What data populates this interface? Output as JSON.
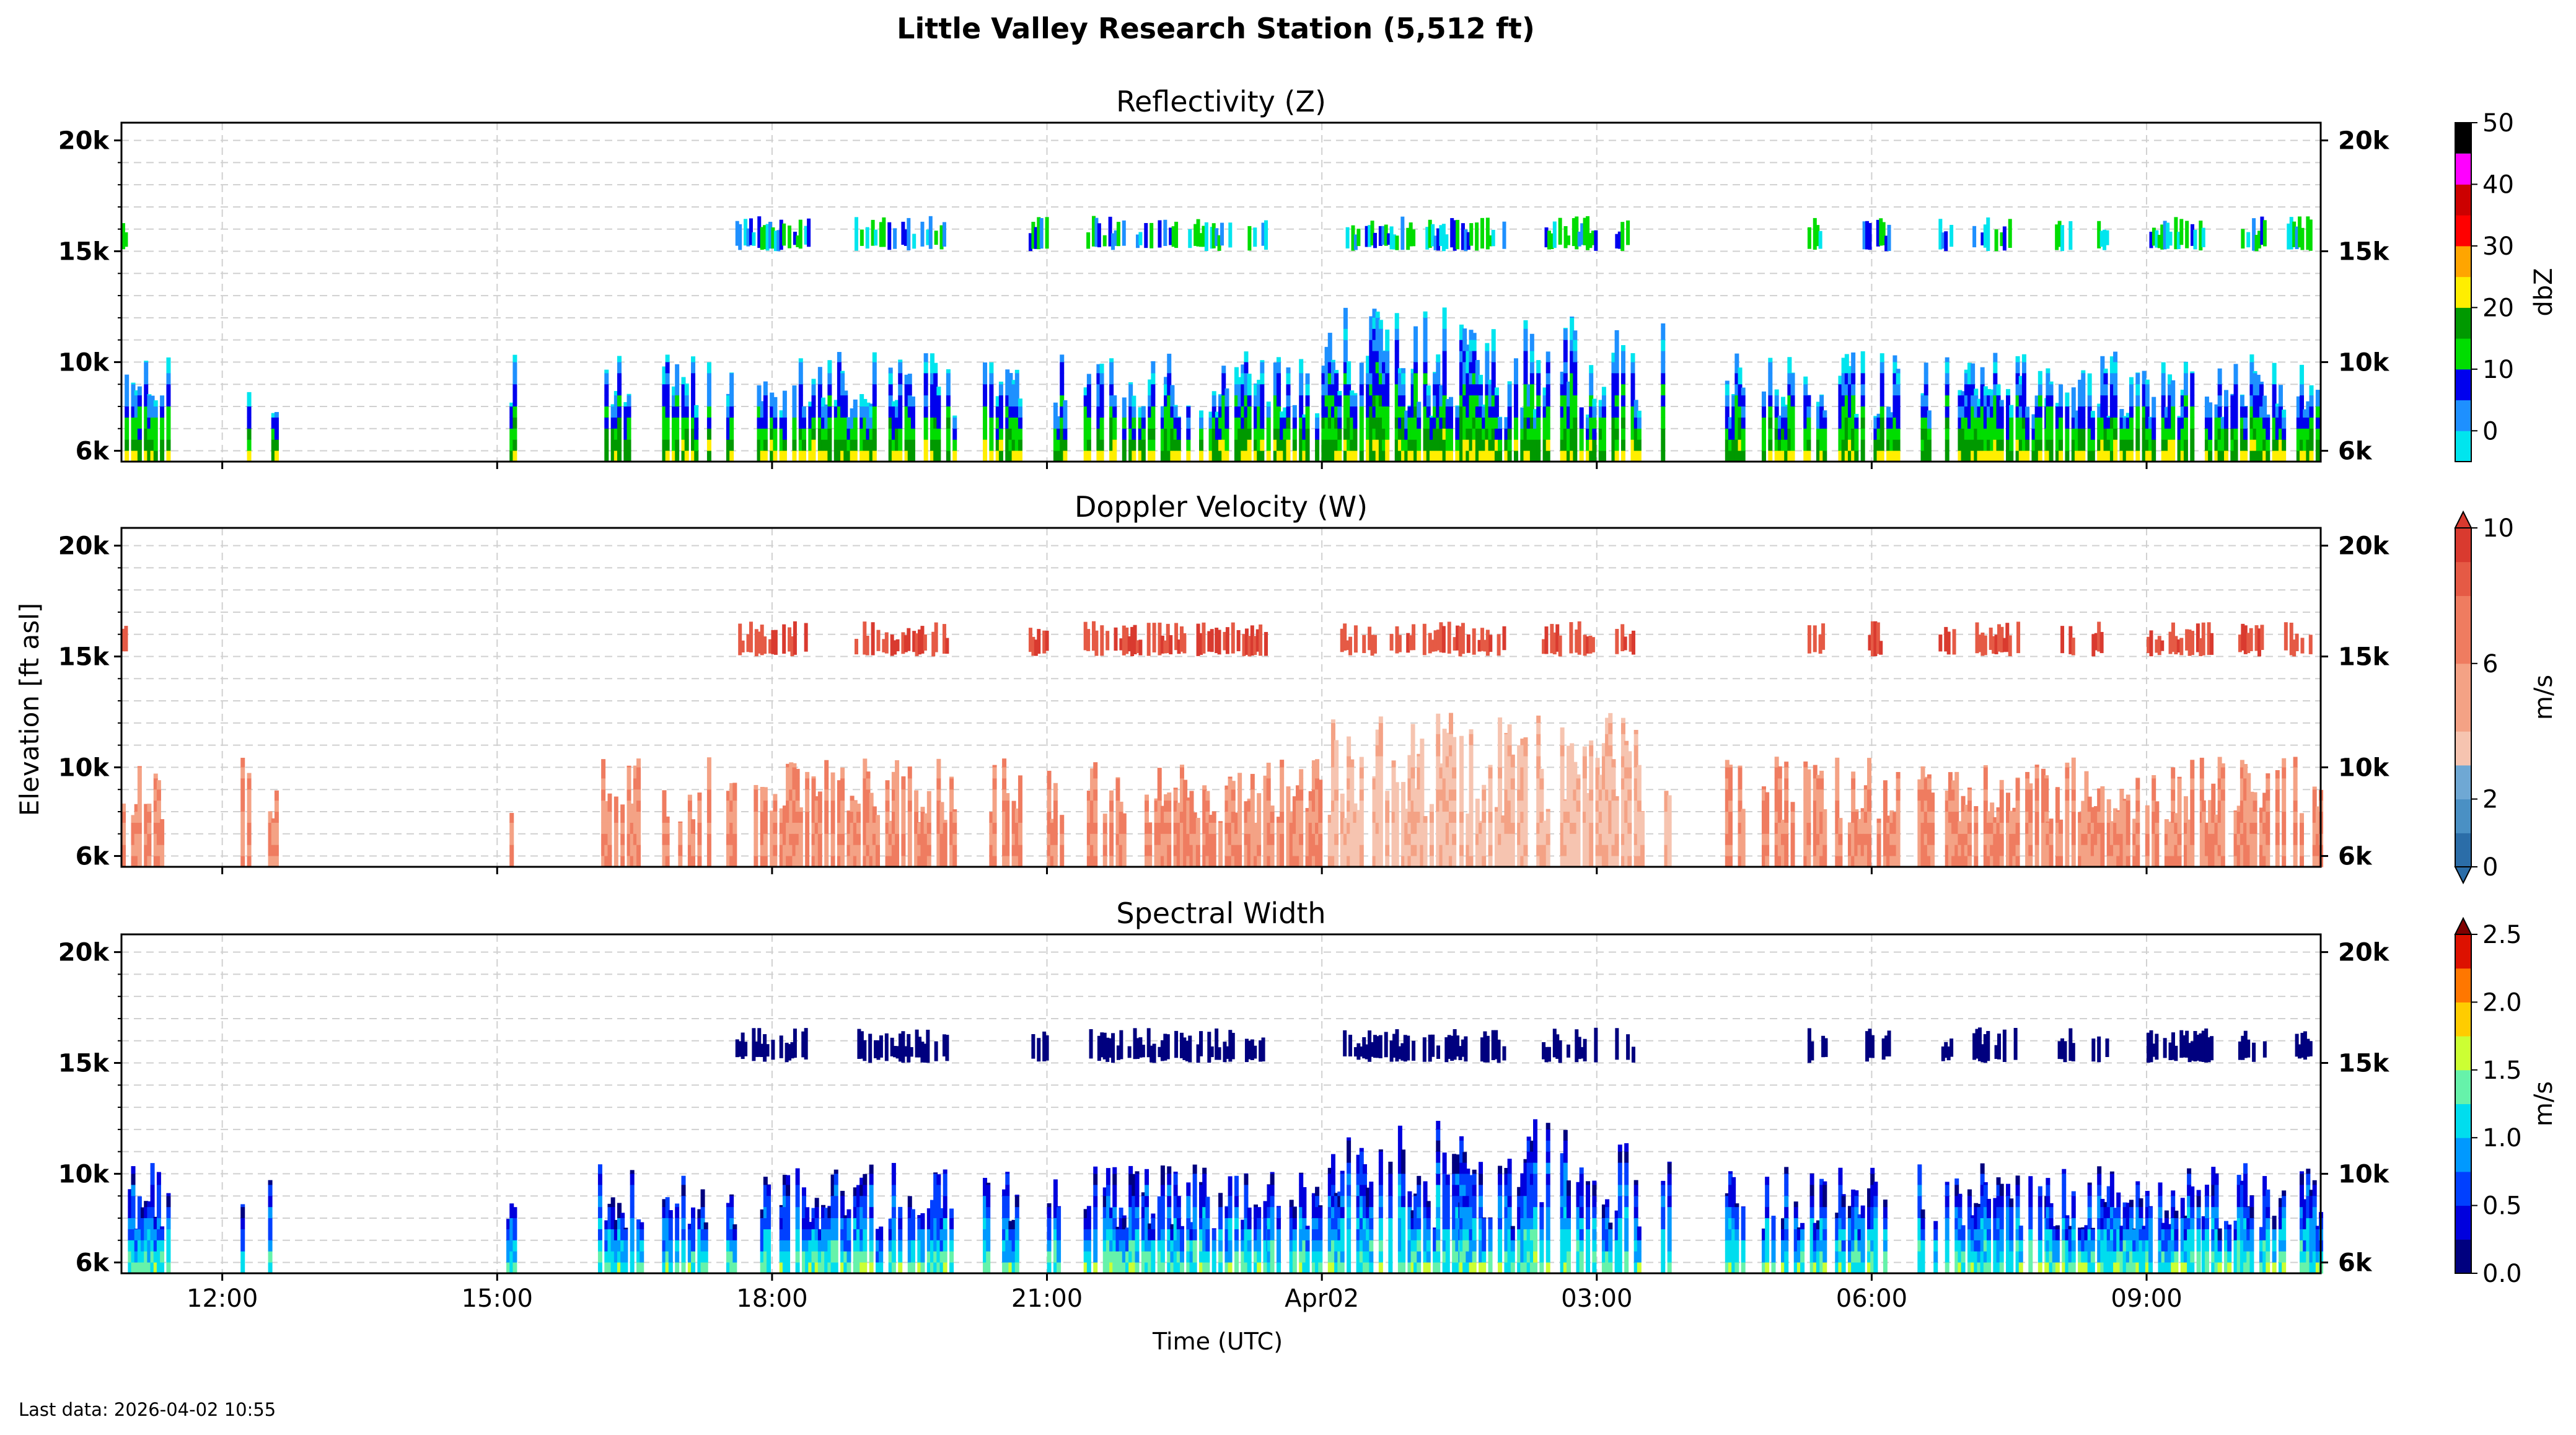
{
  "figure": {
    "title": "Little Valley Research Station (5,512 ft)",
    "ylabel": "Elevation [ft asl]",
    "xlabel": "Time (UTC)",
    "last_data_label": "Last data: 2026-04-02 10:55"
  },
  "chart_data": [
    {
      "type": "heatmap",
      "title": "Reflectivity (Z)",
      "variable": "Z",
      "colorbar_label": "dbZ",
      "colorbar_ticks": [
        "0",
        "10",
        "20",
        "30",
        "40",
        "50"
      ],
      "colorbar_range": [
        -5,
        50
      ],
      "colorbar_levels": [
        -5,
        0,
        5,
        10,
        15,
        20,
        25,
        30,
        35,
        40,
        45,
        50
      ],
      "colorbar_colors": [
        "#00e5ee",
        "#1e90ff",
        "#0000ee",
        "#00dd00",
        "#009900",
        "#ffee00",
        "#ffa500",
        "#ff0000",
        "#cc0000",
        "#ff00ff",
        "#9955cc"
      ],
      "colorbar_top_color": "#000000",
      "extend": "none",
      "x_tick_labels": [
        "12:00",
        "15:00",
        "18:00",
        "21:00",
        "Apr02",
        "03:00",
        "06:00",
        "09:00"
      ],
      "x_tick_hours": [
        12,
        15,
        18,
        21,
        24,
        27,
        30,
        33
      ],
      "xlim_hours": [
        10.9,
        34.9
      ],
      "y_tick_labels": [
        "6k",
        "10k",
        "15k",
        "20k"
      ],
      "y_tick_values": [
        6000,
        10000,
        15000,
        20000
      ],
      "ylim_ft": [
        5512,
        20800
      ]
    },
    {
      "type": "heatmap",
      "title": "Doppler Velocity (W)",
      "variable": "W",
      "colorbar_label": "m/s",
      "colorbar_ticks": [
        "0",
        "2",
        "6",
        "10"
      ],
      "colorbar_tick_values": [
        0,
        2,
        6,
        10
      ],
      "colorbar_range": [
        0,
        10
      ],
      "colorbar_levels": [
        0,
        1,
        2,
        3,
        4,
        6,
        8,
        9,
        10
      ],
      "colorbar_colors": [
        "#2b6da8",
        "#4a90c4",
        "#6fa8d4",
        "#f6c4b0",
        "#f4a285",
        "#ef7c60",
        "#e55a45",
        "#d93a2f"
      ],
      "extend": "both",
      "x_tick_labels": [
        "12:00",
        "15:00",
        "18:00",
        "21:00",
        "Apr02",
        "03:00",
        "06:00",
        "09:00"
      ],
      "x_tick_hours": [
        12,
        15,
        18,
        21,
        24,
        27,
        30,
        33
      ],
      "xlim_hours": [
        10.9,
        34.9
      ],
      "y_tick_labels": [
        "6k",
        "10k",
        "15k",
        "20k"
      ],
      "y_tick_values": [
        6000,
        10000,
        15000,
        20000
      ],
      "ylim_ft": [
        5512,
        20800
      ]
    },
    {
      "type": "heatmap",
      "title": "Spectral Width",
      "variable": "SW",
      "colorbar_label": "m/s",
      "colorbar_ticks": [
        "0.0",
        "0.5",
        "1.0",
        "1.5",
        "2.0",
        "2.5"
      ],
      "colorbar_range": [
        0,
        2.5
      ],
      "colorbar_levels": [
        0,
        0.25,
        0.5,
        0.75,
        1.0,
        1.25,
        1.5,
        1.75,
        2.0,
        2.25,
        2.5
      ],
      "colorbar_colors": [
        "#00007f",
        "#0000dd",
        "#0040ff",
        "#0099ff",
        "#00ddee",
        "#66f2aa",
        "#ccff33",
        "#ffcc00",
        "#ff7700",
        "#dd1100"
      ],
      "colorbar_top_color": "#800000",
      "extend": "max",
      "x_tick_labels": [
        "12:00",
        "15:00",
        "18:00",
        "21:00",
        "Apr02",
        "03:00",
        "06:00",
        "09:00"
      ],
      "x_tick_hours": [
        12,
        15,
        18,
        21,
        24,
        27,
        30,
        33
      ],
      "xlim_hours": [
        10.9,
        34.9
      ],
      "y_tick_labels": [
        "6k",
        "10k",
        "15k",
        "20k"
      ],
      "y_tick_values": [
        6000,
        10000,
        15000,
        20000
      ],
      "ylim_ft": [
        5512,
        20800
      ]
    }
  ],
  "cloud_layers": {
    "upper_layer_ft": [
      15000,
      16600
    ],
    "lower_layer_ft": [
      5512,
      12500
    ],
    "upper_segments_hours": [
      [
        10.9,
        10.95
      ],
      [
        17.6,
        18.4
      ],
      [
        18.9,
        19.9
      ],
      [
        20.8,
        21.0
      ],
      [
        21.4,
        22.8
      ],
      [
        22.8,
        23.4
      ],
      [
        24.2,
        25.0
      ],
      [
        25.1,
        26.0
      ],
      [
        26.4,
        27.0
      ],
      [
        27.2,
        27.4
      ],
      [
        29.3,
        29.5
      ],
      [
        29.9,
        30.2
      ],
      [
        30.7,
        30.9
      ],
      [
        31.1,
        31.6
      ],
      [
        32.0,
        32.2
      ],
      [
        32.4,
        32.6
      ],
      [
        33.0,
        33.7
      ],
      [
        34.0,
        34.3
      ],
      [
        34.5,
        34.8
      ]
    ],
    "lower_segments_hours": [
      [
        10.9,
        11.4
      ],
      [
        12.2,
        12.3
      ],
      [
        12.5,
        12.6
      ],
      [
        15.1,
        15.2
      ],
      [
        16.1,
        16.6
      ],
      [
        16.8,
        17.3
      ],
      [
        17.5,
        17.6
      ],
      [
        17.8,
        20.0
      ],
      [
        20.3,
        20.7
      ],
      [
        21.0,
        21.2
      ],
      [
        21.4,
        22.8
      ],
      [
        22.8,
        23.4
      ],
      [
        23.4,
        24.2
      ],
      [
        24.2,
        25.0
      ],
      [
        25.0,
        25.5
      ],
      [
        25.5,
        26.5
      ],
      [
        26.6,
        27.5
      ],
      [
        27.7,
        27.8
      ],
      [
        28.4,
        28.6
      ],
      [
        28.8,
        29.5
      ],
      [
        29.6,
        30.3
      ],
      [
        30.5,
        30.7
      ],
      [
        30.8,
        31.9
      ],
      [
        31.9,
        33.6
      ],
      [
        33.6,
        34.5
      ],
      [
        34.6,
        34.9
      ]
    ]
  }
}
